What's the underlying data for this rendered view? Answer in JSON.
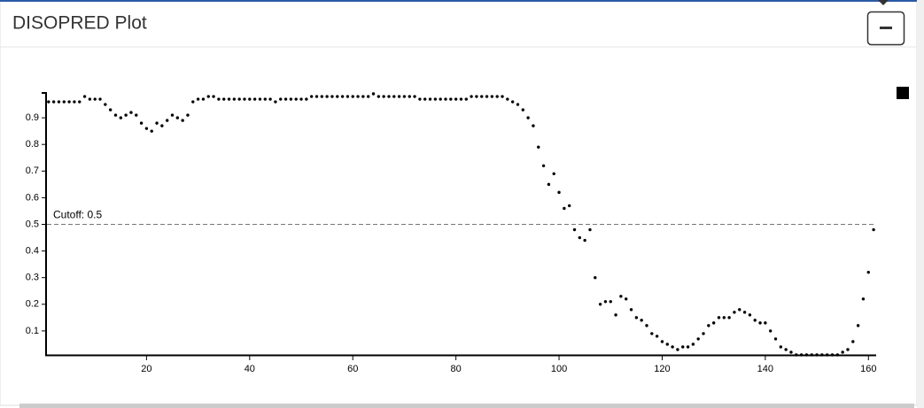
{
  "chart_data": {
    "type": "scatter",
    "title": "DISOPRED Plot",
    "annotation": "Cutoff: 0.5",
    "cutoff": 0.5,
    "color": "#000000",
    "x": [
      1,
      2,
      3,
      4,
      5,
      6,
      7,
      8,
      9,
      10,
      11,
      12,
      13,
      14,
      15,
      16,
      17,
      18,
      19,
      20,
      21,
      22,
      23,
      24,
      25,
      26,
      27,
      28,
      29,
      30,
      31,
      32,
      33,
      34,
      35,
      36,
      37,
      38,
      39,
      40,
      41,
      42,
      43,
      44,
      45,
      46,
      47,
      48,
      49,
      50,
      51,
      52,
      53,
      54,
      55,
      56,
      57,
      58,
      59,
      60,
      61,
      62,
      63,
      64,
      65,
      66,
      67,
      68,
      69,
      70,
      71,
      72,
      73,
      74,
      75,
      76,
      77,
      78,
      79,
      80,
      81,
      82,
      83,
      84,
      85,
      86,
      87,
      88,
      89,
      90,
      91,
      92,
      93,
      94,
      95,
      96,
      97,
      98,
      99,
      100,
      101,
      102,
      103,
      104,
      105,
      106,
      107,
      108,
      109,
      110,
      111,
      112,
      113,
      114,
      115,
      116,
      117,
      118,
      119,
      120,
      121,
      122,
      123,
      124,
      125,
      126,
      127,
      128,
      129,
      130,
      131,
      132,
      133,
      134,
      135,
      136,
      137,
      138,
      139,
      140,
      141,
      142,
      143,
      144,
      145,
      146,
      147,
      148,
      149,
      150,
      151,
      152,
      153,
      154,
      155,
      156,
      157,
      158,
      159,
      160,
      161
    ],
    "values": [
      0.96,
      0.96,
      0.96,
      0.96,
      0.96,
      0.96,
      0.96,
      0.98,
      0.97,
      0.97,
      0.97,
      0.95,
      0.93,
      0.91,
      0.9,
      0.91,
      0.92,
      0.91,
      0.88,
      0.86,
      0.85,
      0.88,
      0.87,
      0.89,
      0.91,
      0.9,
      0.89,
      0.91,
      0.96,
      0.97,
      0.97,
      0.98,
      0.98,
      0.97,
      0.97,
      0.97,
      0.97,
      0.97,
      0.97,
      0.97,
      0.97,
      0.97,
      0.97,
      0.97,
      0.96,
      0.97,
      0.97,
      0.97,
      0.97,
      0.97,
      0.97,
      0.98,
      0.98,
      0.98,
      0.98,
      0.98,
      0.98,
      0.98,
      0.98,
      0.98,
      0.98,
      0.98,
      0.98,
      0.99,
      0.98,
      0.98,
      0.98,
      0.98,
      0.98,
      0.98,
      0.98,
      0.98,
      0.97,
      0.97,
      0.97,
      0.97,
      0.97,
      0.97,
      0.97,
      0.97,
      0.97,
      0.97,
      0.98,
      0.98,
      0.98,
      0.98,
      0.98,
      0.98,
      0.98,
      0.97,
      0.96,
      0.95,
      0.93,
      0.9,
      0.87,
      0.79,
      0.72,
      0.65,
      0.69,
      0.62,
      0.56,
      0.57,
      0.48,
      0.45,
      0.44,
      0.48,
      0.3,
      0.2,
      0.21,
      0.21,
      0.16,
      0.23,
      0.22,
      0.18,
      0.15,
      0.14,
      0.12,
      0.09,
      0.08,
      0.06,
      0.05,
      0.04,
      0.03,
      0.04,
      0.04,
      0.05,
      0.07,
      0.09,
      0.12,
      0.13,
      0.15,
      0.15,
      0.15,
      0.17,
      0.18,
      0.17,
      0.16,
      0.14,
      0.13,
      0.13,
      0.1,
      0.07,
      0.04,
      0.03,
      0.02,
      0.01,
      0.01,
      0.01,
      0.01,
      0.01,
      0.01,
      0.01,
      0.01,
      0.01,
      0.02,
      0.03,
      0.06,
      0.12,
      0.22,
      0.32,
      0.48
    ],
    "xlim": [
      0,
      161.5
    ],
    "xticks": [
      20,
      40,
      60,
      80,
      100,
      120,
      140,
      160
    ],
    "ylim": [
      0,
      1
    ],
    "yticks": [
      0.1,
      0.2,
      0.3,
      0.4,
      0.5,
      0.6,
      0.7,
      0.8,
      0.9
    ]
  }
}
